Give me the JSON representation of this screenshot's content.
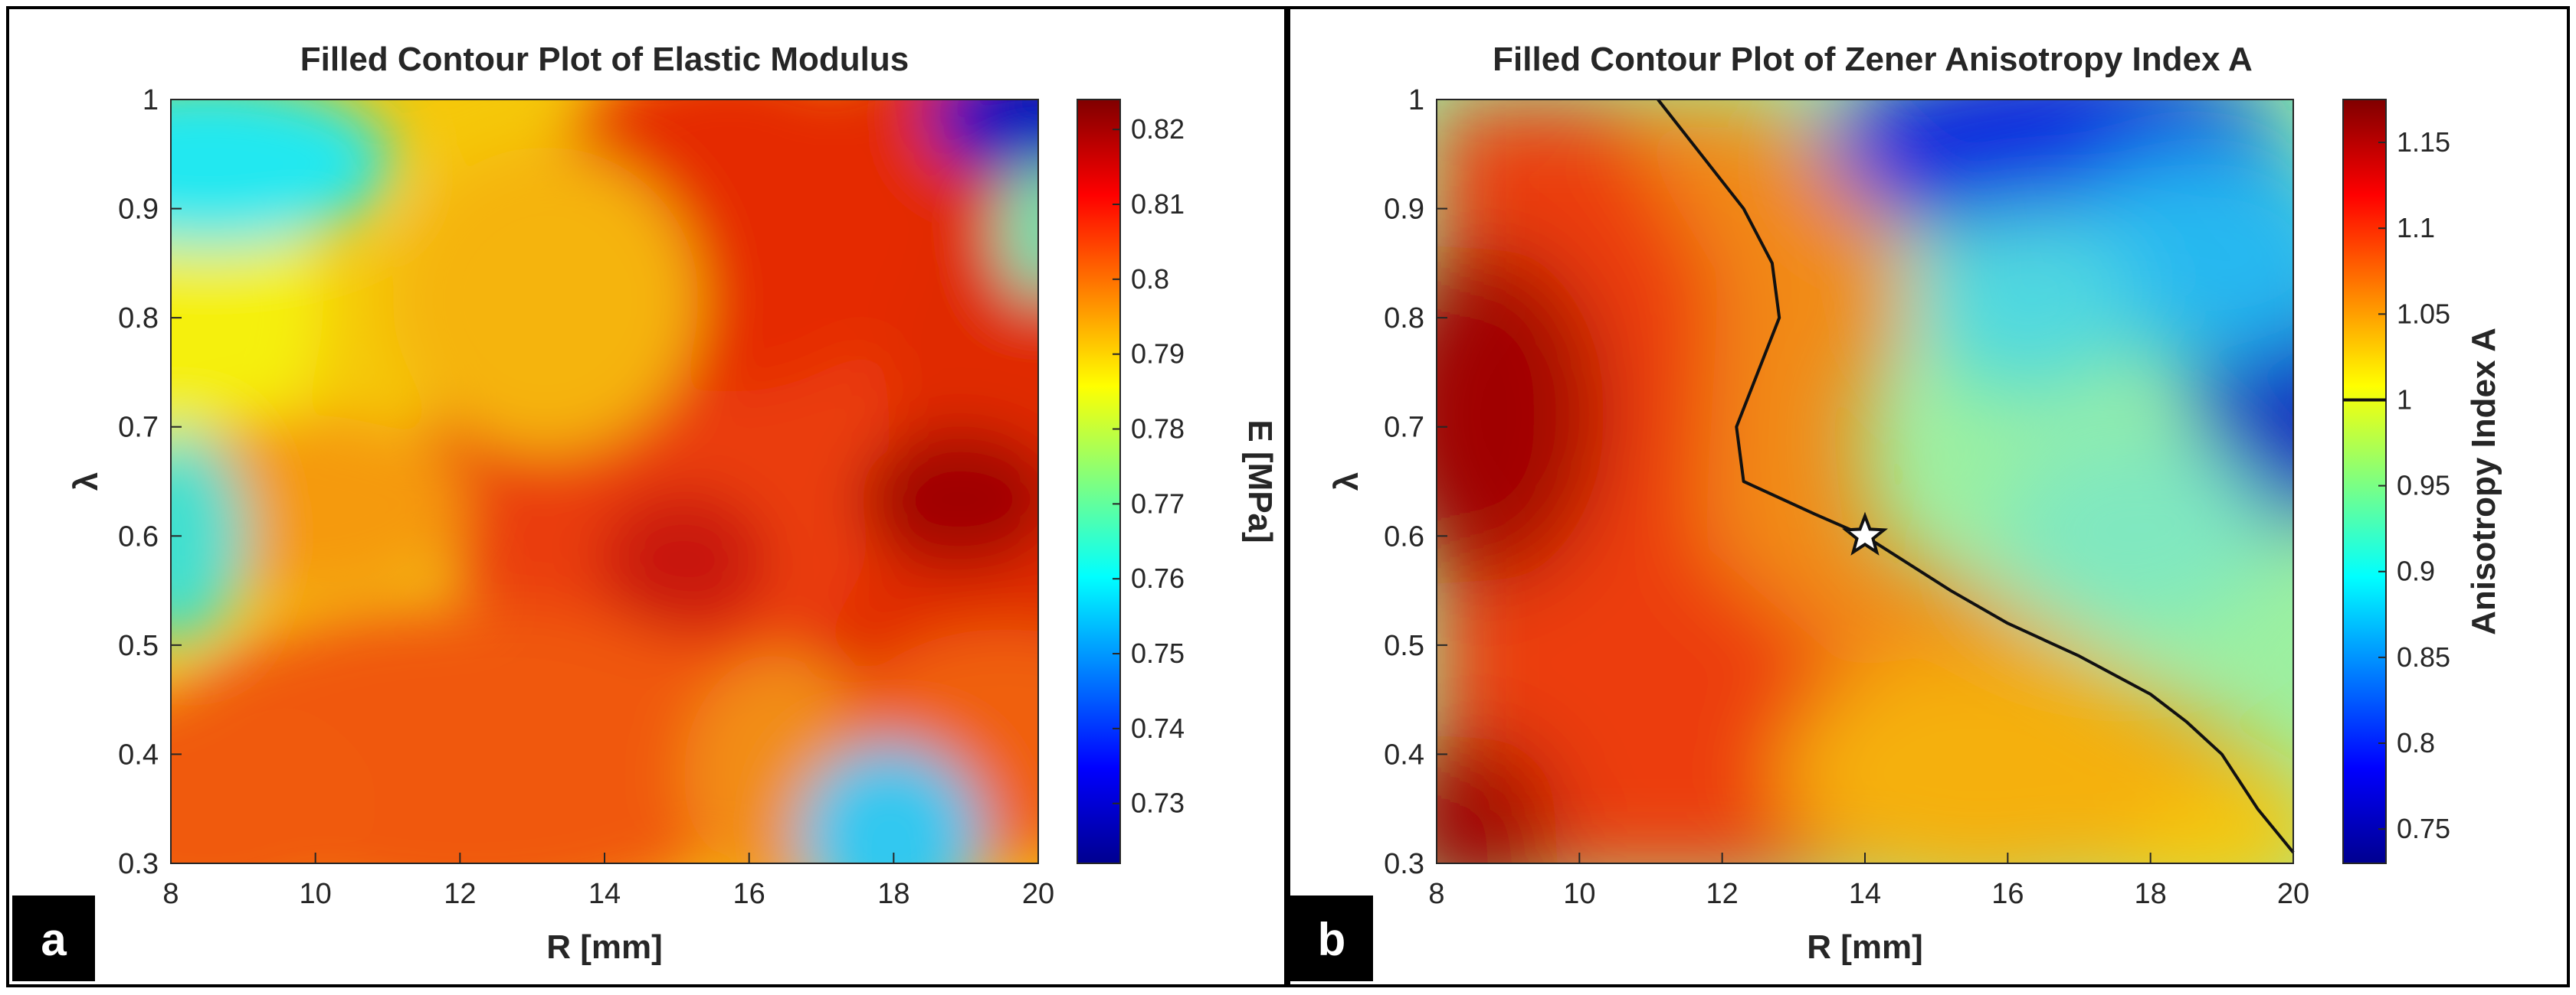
{
  "figure": {
    "panels": [
      {
        "letter": "a",
        "title": "Filled Contour Plot of Elastic Modulus",
        "xlabel": "R [mm]",
        "ylabel": "λ",
        "colorbar_label": "E [MPa]"
      },
      {
        "letter": "b",
        "title": "Filled Contour Plot of Zener Anisotropy Index A",
        "xlabel": "R [mm]",
        "ylabel": "λ",
        "colorbar_label": "Anisotropy Index A"
      }
    ]
  },
  "chart_data": [
    {
      "type": "heatmap",
      "subtype": "filled-contour",
      "title": "Filled Contour Plot of Elastic Modulus",
      "xlabel": "R [mm]",
      "ylabel": "λ",
      "xlim": [
        8,
        20
      ],
      "ylim": [
        0.3,
        1
      ],
      "x_ticks": [
        "8",
        "10",
        "12",
        "14",
        "16",
        "18",
        "20"
      ],
      "y_ticks": [
        "0.3",
        "0.4",
        "0.5",
        "0.6",
        "0.7",
        "0.8",
        "0.9",
        "1"
      ],
      "colormap": "jet",
      "colorbar": {
        "label": "E [MPa]",
        "range": [
          0.722,
          0.824
        ],
        "ticks": [
          "0.73",
          "0.74",
          "0.75",
          "0.76",
          "0.77",
          "0.78",
          "0.79",
          "0.8",
          "0.81",
          "0.82"
        ]
      },
      "field_features": [
        {
          "x": 18.2,
          "y": 0.65,
          "value": 0.824,
          "kind": "maximum"
        },
        {
          "x": 14.2,
          "y": 0.58,
          "value": 0.815,
          "kind": "local high"
        },
        {
          "x": 15.0,
          "y": 0.9,
          "value": 0.814,
          "kind": "local high"
        },
        {
          "x": 19.5,
          "y": 0.98,
          "value": 0.725,
          "kind": "minimum"
        },
        {
          "x": 18.8,
          "y": 0.32,
          "value": 0.755,
          "kind": "local low"
        },
        {
          "x": 9.0,
          "y": 0.98,
          "value": 0.765,
          "kind": "local low"
        },
        {
          "x": 8.0,
          "y": 0.55,
          "value": 0.768,
          "kind": "local low"
        }
      ]
    },
    {
      "type": "heatmap",
      "subtype": "filled-contour",
      "title": "Filled Contour Plot of Zener Anisotropy Index A",
      "xlabel": "R [mm]",
      "ylabel": "λ",
      "xlim": [
        8,
        20
      ],
      "ylim": [
        0.3,
        1
      ],
      "x_ticks": [
        "8",
        "10",
        "12",
        "14",
        "16",
        "18",
        "20"
      ],
      "y_ticks": [
        "0.3",
        "0.4",
        "0.5",
        "0.6",
        "0.7",
        "0.8",
        "0.9",
        "1"
      ],
      "colormap": "jet",
      "colorbar": {
        "label": "Anisotropy Index A",
        "range": [
          0.73,
          1.175
        ],
        "ticks": [
          "0.75",
          "0.8",
          "0.85",
          "0.9",
          "0.95",
          "1",
          "1.05",
          "1.1",
          "1.15"
        ],
        "marked_level": 1
      },
      "field_features": [
        {
          "x": 8.7,
          "y": 0.77,
          "value": 1.17,
          "kind": "maximum"
        },
        {
          "x": 8.0,
          "y": 0.3,
          "value": 1.16,
          "kind": "local high"
        },
        {
          "x": 19.8,
          "y": 0.72,
          "value": 0.735,
          "kind": "minimum"
        },
        {
          "x": 15.5,
          "y": 0.98,
          "value": 0.77,
          "kind": "local low"
        }
      ],
      "iso_line": {
        "level": 1,
        "points": [
          [
            11.1,
            1.0
          ],
          [
            12.3,
            0.9
          ],
          [
            12.7,
            0.85
          ],
          [
            12.8,
            0.8
          ],
          [
            12.2,
            0.7
          ],
          [
            12.3,
            0.65
          ],
          [
            13.3,
            0.62
          ],
          [
            14.0,
            0.6
          ],
          [
            15.2,
            0.55
          ],
          [
            16.0,
            0.52
          ],
          [
            17.0,
            0.49
          ],
          [
            18.0,
            0.455
          ],
          [
            18.5,
            0.43
          ],
          [
            19.0,
            0.4
          ],
          [
            19.5,
            0.35
          ],
          [
            20.0,
            0.31
          ]
        ]
      },
      "marker": {
        "x": 14,
        "y": 0.6,
        "shape": "star"
      }
    }
  ]
}
